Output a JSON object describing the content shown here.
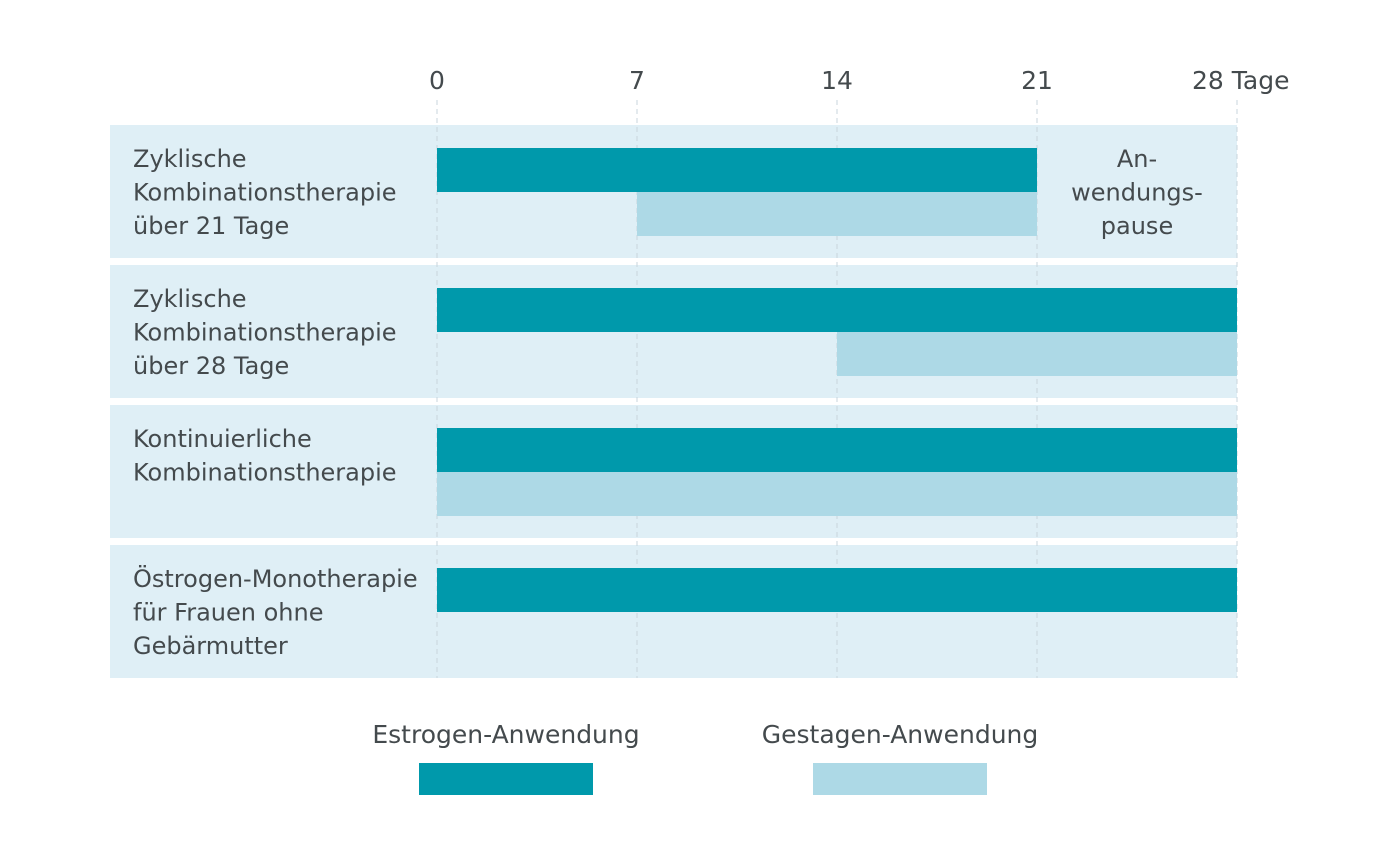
{
  "chart_data": {
    "type": "bar",
    "subtype": "gantt",
    "title": "",
    "x_axis": {
      "ticks": [
        0,
        7,
        14,
        21,
        28
      ],
      "tick_labels": [
        "0",
        "7",
        "14",
        "21",
        "28 Tage"
      ],
      "range": [
        0,
        28
      ],
      "unit": "Tage",
      "grid": true
    },
    "rows": [
      {
        "label_lines": [
          "Zyklische",
          "Kombinationstherapie",
          "über 21 Tage"
        ],
        "estrogen": [
          0,
          21
        ],
        "gestagen": [
          7,
          21
        ],
        "annotation_lines": [
          "An-",
          "wendungs-",
          "pause"
        ]
      },
      {
        "label_lines": [
          "Zyklische",
          "Kombinationstherapie",
          "über 28 Tage"
        ],
        "estrogen": [
          0,
          28
        ],
        "gestagen": [
          14,
          28
        ]
      },
      {
        "label_lines": [
          "Kontinuierliche",
          "Kombinationstherapie"
        ],
        "estrogen": [
          0,
          28
        ],
        "gestagen": [
          0,
          28
        ]
      },
      {
        "label_lines": [
          "Östrogen-Monotherapie",
          "für Frauen ohne",
          "Gebärmutter"
        ],
        "estrogen": [
          0,
          28
        ],
        "gestagen": null
      }
    ],
    "legend": [
      {
        "key": "estrogen",
        "label": "Estrogen-Anwendung",
        "color": "#0099ab"
      },
      {
        "key": "gestagen",
        "label": "Gestagen-Anwendung",
        "color": "#add9e6"
      }
    ],
    "legend_position": "bottom-center",
    "colors": {
      "estrogen": "#0099ab",
      "gestagen": "#add9e6",
      "row_background": "#dfeff6",
      "grid": "#c8d6dc",
      "text": "#444a4d"
    }
  }
}
